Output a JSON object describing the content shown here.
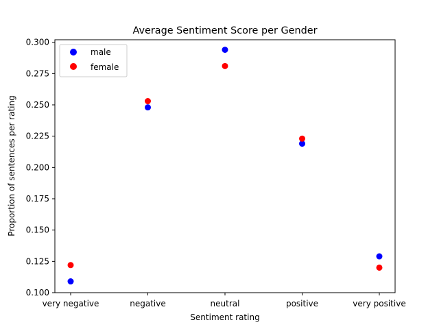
{
  "chart_data": {
    "type": "scatter",
    "title": "Average Sentiment Score per Gender",
    "xlabel": "Sentiment rating",
    "ylabel": "Proportion of sentences per rating",
    "categories": [
      "very negative",
      "negative",
      "neutral",
      "positive",
      "very positive"
    ],
    "ylim": [
      0.1,
      0.302
    ],
    "yticks": [
      "0.100",
      "0.125",
      "0.150",
      "0.175",
      "0.200",
      "0.225",
      "0.250",
      "0.275",
      "0.300"
    ],
    "grid": false,
    "legend_position": "top-left",
    "series": [
      {
        "name": "male",
        "color": "#0000ff",
        "values": [
          0.109,
          0.248,
          0.294,
          0.219,
          0.129
        ]
      },
      {
        "name": "female",
        "color": "#ff0000",
        "values": [
          0.122,
          0.253,
          0.281,
          0.223,
          0.12
        ]
      }
    ]
  }
}
